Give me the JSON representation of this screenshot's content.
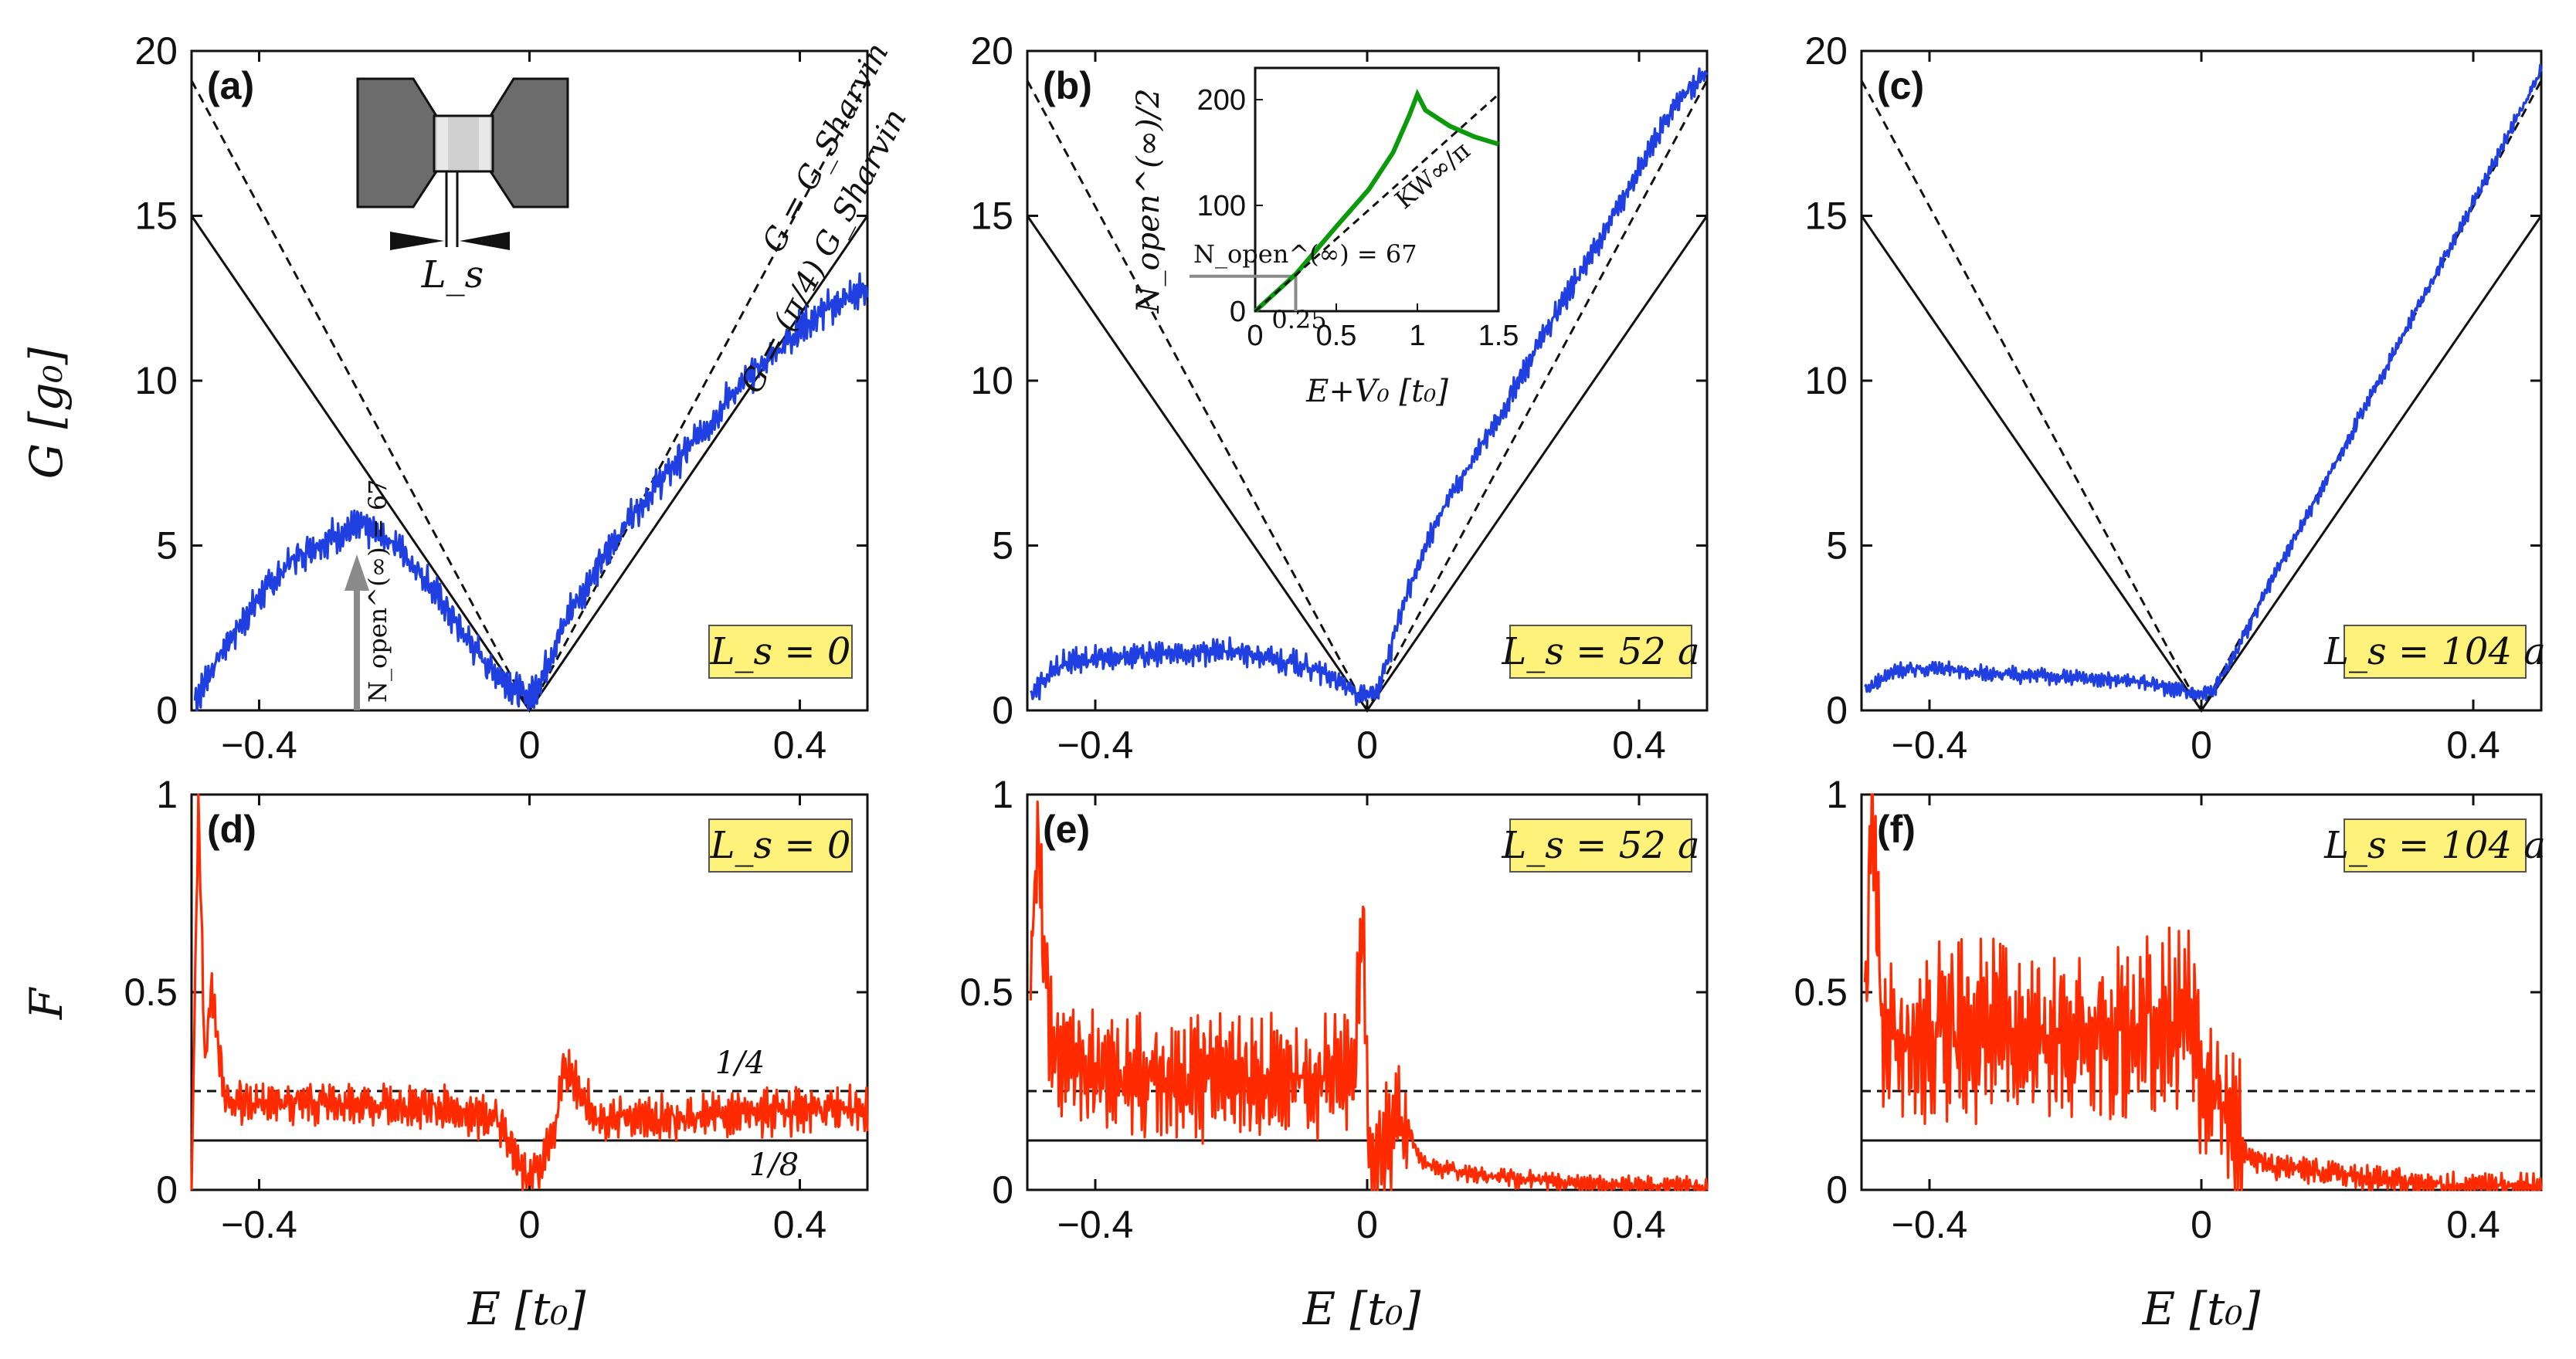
{
  "figure": {
    "x_axis_title": "E [t₀]",
    "g_axis_title": "G [g₀]",
    "f_axis_title": "F",
    "x_ticks": [
      "−0.4",
      "0",
      "0.4"
    ],
    "g_ticks": [
      "0",
      "5",
      "10",
      "15",
      "20"
    ],
    "f_ticks": [
      "0",
      "0.5",
      "1"
    ]
  },
  "annotations": {
    "sharvin_label": "G = G_Sharvin",
    "sharvin_pi4_label": "G = (π/4) G_Sharvin",
    "schematic_label": "L_s",
    "nopen_arrow_label": "N_open^(∞) = 67",
    "quarter_label": "1/4",
    "eighth_label": "1/8"
  },
  "inset": {
    "y_title": "N_open^(∞)/2",
    "x_title": "E+V₀ [t₀]",
    "y_ticks": [
      "0",
      "100",
      "200"
    ],
    "x_ticks": [
      "0",
      "0.5",
      "1",
      "1.5"
    ],
    "kw_label": "KW∞/π",
    "nopen_label": "N_open^(∞) = 67",
    "tick_025": "0.25"
  },
  "colors": {
    "conductance": "#1f3fe0",
    "fano": "#ff2a00",
    "inset_curve": "#0a9a0a",
    "badge_fill": "#fff27a",
    "arrow": "#8a8a8a"
  },
  "chart_data": [
    {
      "type": "line",
      "panel": "a",
      "panel_label": "(a)",
      "badge": "L_s = 0",
      "xlim": [
        -0.5,
        0.5
      ],
      "ylim": [
        0,
        20
      ],
      "xlabel": "",
      "ylabel": "G [g₀]",
      "series": [
        {
          "name": "G_Sharvin",
          "style": "dashed",
          "x": [
            -0.5,
            0,
            0.5
          ],
          "y": [
            19.1,
            0,
            19.1
          ]
        },
        {
          "name": "(π/4) G_Sharvin",
          "style": "solid",
          "x": [
            -0.5,
            0,
            0.5
          ],
          "y": [
            15,
            0,
            15
          ]
        },
        {
          "name": "G",
          "color": "#1f3fe0",
          "noise": 0.55,
          "x": [
            -0.495,
            -0.45,
            -0.4,
            -0.35,
            -0.3,
            -0.25,
            -0.2,
            -0.15,
            -0.1,
            -0.06,
            -0.03,
            -0.01,
            0,
            0.01,
            0.03,
            0.06,
            0.1,
            0.15,
            0.2,
            0.25,
            0.3,
            0.35,
            0.4,
            0.45,
            0.5
          ],
          "y": [
            0.3,
            2.0,
            3.4,
            4.6,
            5.2,
            5.6,
            5.1,
            3.9,
            2.4,
            1.3,
            0.8,
            0.5,
            0.4,
            0.7,
            1.6,
            3.0,
            4.3,
            5.9,
            7.1,
            8.3,
            9.6,
            10.6,
            11.6,
            12.3,
            12.8
          ]
        }
      ]
    },
    {
      "type": "line",
      "panel": "b",
      "panel_label": "(b)",
      "badge": "L_s = 52 a",
      "xlim": [
        -0.5,
        0.5
      ],
      "ylim": [
        0,
        20
      ],
      "series": [
        {
          "name": "G_Sharvin",
          "style": "dashed",
          "x": [
            -0.5,
            0,
            0.5
          ],
          "y": [
            19.1,
            0,
            19.1
          ]
        },
        {
          "name": "(π/4) G_Sharvin",
          "style": "solid",
          "x": [
            -0.5,
            0,
            0.5
          ],
          "y": [
            15,
            0,
            15
          ]
        },
        {
          "name": "G",
          "color": "#1f3fe0",
          "noise": 0.4,
          "x": [
            -0.495,
            -0.45,
            -0.4,
            -0.3,
            -0.2,
            -0.1,
            -0.05,
            -0.02,
            0,
            0.02,
            0.05,
            0.1,
            0.15,
            0.2,
            0.25,
            0.3,
            0.35,
            0.4,
            0.45,
            0.5
          ],
          "y": [
            0.5,
            1.4,
            1.6,
            1.7,
            1.8,
            1.4,
            1.0,
            0.5,
            0.4,
            0.8,
            3.0,
            5.7,
            7.4,
            9.1,
            11.0,
            12.8,
            14.5,
            16.4,
            18.3,
            19.4
          ]
        }
      ]
    },
    {
      "type": "line",
      "panel": "c",
      "panel_label": "(c)",
      "badge": "L_s = 104 a",
      "xlim": [
        -0.5,
        0.5
      ],
      "ylim": [
        0,
        20
      ],
      "series": [
        {
          "name": "G_Sharvin",
          "style": "dashed",
          "x": [
            -0.5,
            0,
            0.5
          ],
          "y": [
            19.1,
            0,
            19.1
          ]
        },
        {
          "name": "(π/4) G_Sharvin",
          "style": "solid",
          "x": [
            -0.5,
            0,
            0.5
          ],
          "y": [
            15,
            0,
            15
          ]
        },
        {
          "name": "G",
          "color": "#1f3fe0",
          "noise": 0.25,
          "x": [
            -0.495,
            -0.45,
            -0.4,
            -0.3,
            -0.2,
            -0.1,
            -0.05,
            -0.02,
            0,
            0.02,
            0.05,
            0.1,
            0.2,
            0.3,
            0.4,
            0.5
          ],
          "y": [
            0.6,
            1.2,
            1.3,
            1.1,
            1.0,
            0.9,
            0.7,
            0.6,
            0.5,
            0.7,
            1.7,
            3.8,
            7.6,
            11.5,
            15.4,
            19.4
          ]
        }
      ]
    },
    {
      "type": "line",
      "panel": "d",
      "panel_label": "(d)",
      "badge": "L_s = 0",
      "xlim": [
        -0.5,
        0.5
      ],
      "ylim": [
        0,
        1
      ],
      "series": [
        {
          "name": "1/4",
          "style": "dashed",
          "x": [
            -0.5,
            0.5
          ],
          "y": [
            0.25,
            0.25
          ]
        },
        {
          "name": "1/8",
          "style": "solid",
          "x": [
            -0.5,
            0.5
          ],
          "y": [
            0.125,
            0.125
          ]
        },
        {
          "name": "F",
          "color": "#ff2a00",
          "noise": 0.06,
          "x": [
            -0.5,
            -0.49,
            -0.48,
            -0.47,
            -0.45,
            -0.4,
            -0.3,
            -0.2,
            -0.1,
            -0.05,
            -0.02,
            0,
            0.02,
            0.04,
            0.05,
            0.1,
            0.2,
            0.3,
            0.4,
            0.5
          ],
          "y": [
            0.0,
            1.0,
            0.3,
            0.5,
            0.22,
            0.22,
            0.22,
            0.21,
            0.2,
            0.18,
            0.08,
            0.02,
            0.08,
            0.18,
            0.32,
            0.18,
            0.18,
            0.19,
            0.2,
            0.21
          ]
        }
      ]
    },
    {
      "type": "line",
      "panel": "e",
      "panel_label": "(e)",
      "badge": "L_s = 52 a",
      "xlim": [
        -0.5,
        0.5
      ],
      "ylim": [
        0,
        1
      ],
      "series": [
        {
          "name": "1/4",
          "style": "dashed",
          "x": [
            -0.5,
            0.5
          ],
          "y": [
            0.25,
            0.25
          ]
        },
        {
          "name": "1/8",
          "style": "solid",
          "x": [
            -0.5,
            0.5
          ],
          "y": [
            0.125,
            0.125
          ]
        },
        {
          "name": "F",
          "color": "#ff2a00",
          "noise": 0.16,
          "x": [
            -0.495,
            -0.485,
            -0.47,
            -0.45,
            -0.4,
            -0.3,
            -0.2,
            -0.1,
            -0.02,
            -0.005,
            0,
            0.01,
            0.03,
            0.05,
            0.08,
            0.12,
            0.2,
            0.3,
            0.4,
            0.5
          ],
          "y": [
            0.5,
            0.9,
            0.45,
            0.35,
            0.3,
            0.28,
            0.28,
            0.28,
            0.3,
            0.7,
            0.2,
            0.05,
            0.12,
            0.2,
            0.07,
            0.05,
            0.03,
            0.02,
            0.01,
            0.01
          ]
        }
      ]
    },
    {
      "type": "line",
      "panel": "f",
      "panel_label": "(f)",
      "badge": "L_s = 104 a",
      "xlim": [
        -0.5,
        0.5
      ],
      "ylim": [
        0,
        1
      ],
      "series": [
        {
          "name": "1/4",
          "style": "dashed",
          "x": [
            -0.5,
            0.5
          ],
          "y": [
            0.25,
            0.25
          ]
        },
        {
          "name": "1/8",
          "style": "solid",
          "x": [
            -0.5,
            0.5
          ],
          "y": [
            0.125,
            0.125
          ]
        },
        {
          "name": "F",
          "color": "#ff2a00",
          "noise": 0.22,
          "x": [
            -0.495,
            -0.485,
            -0.47,
            -0.45,
            -0.4,
            -0.3,
            -0.2,
            -0.1,
            -0.05,
            -0.01,
            0,
            0.01,
            0.02,
            0.04,
            0.06,
            0.1,
            0.2,
            0.3,
            0.4,
            0.5
          ],
          "y": [
            0.5,
            0.95,
            0.4,
            0.38,
            0.4,
            0.4,
            0.4,
            0.4,
            0.42,
            0.45,
            0.2,
            0.22,
            0.27,
            0.2,
            0.1,
            0.06,
            0.04,
            0.02,
            0.01,
            0.01
          ]
        }
      ]
    },
    {
      "type": "line",
      "panel": "inset",
      "xlim": [
        0,
        1.5
      ],
      "ylim": [
        0,
        230
      ],
      "series": [
        {
          "name": "N_open/2",
          "color": "#0a9a0a",
          "x": [
            0,
            0.25,
            0.5,
            0.7,
            0.85,
            0.95,
            1.0,
            1.05,
            1.2,
            1.35,
            1.5
          ],
          "y": [
            0,
            35,
            80,
            115,
            150,
            185,
            205,
            190,
            175,
            165,
            158
          ]
        },
        {
          "name": "KW∞/π",
          "style": "dashed",
          "x": [
            0,
            1.5
          ],
          "y": [
            0,
            205
          ]
        }
      ]
    }
  ]
}
